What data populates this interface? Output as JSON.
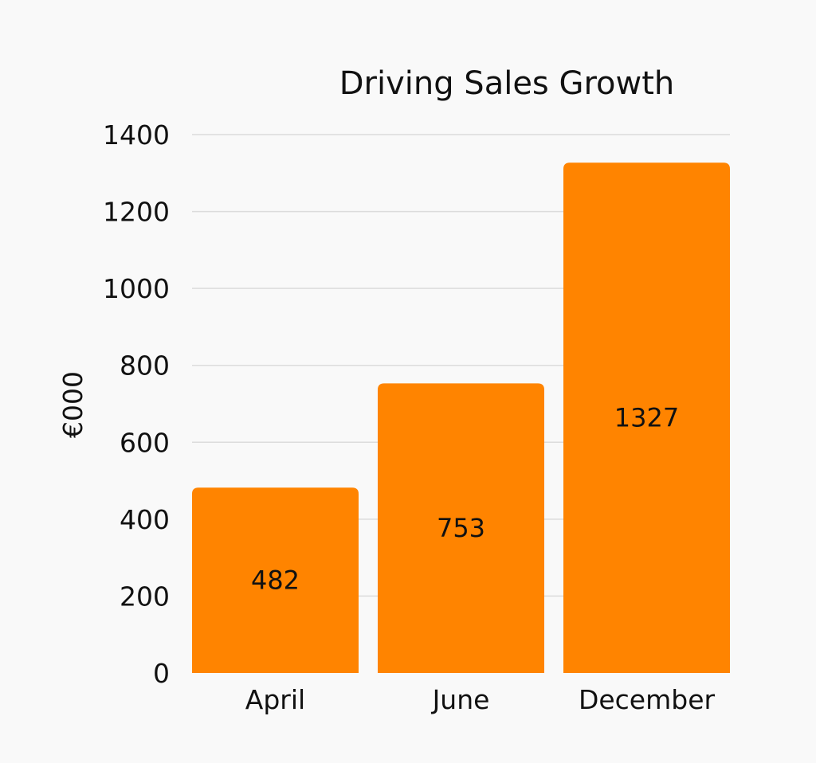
{
  "chart_data": {
    "type": "bar",
    "title": "Driving Sales Growth",
    "ylabel": "€000",
    "xlabel": "",
    "categories": [
      "April",
      "June",
      "December"
    ],
    "values": [
      482,
      753,
      1327
    ],
    "data_labels": [
      "482",
      "753",
      "1327"
    ],
    "ylim": [
      0,
      1400
    ],
    "yticks": [
      0,
      200,
      400,
      600,
      800,
      1000,
      1200,
      1400
    ],
    "grid": true,
    "legend": "none",
    "colors": {
      "bar": "#ff8400",
      "grid": "#dcdcdc",
      "text": "#111111",
      "background": "#f9f9f9"
    }
  }
}
